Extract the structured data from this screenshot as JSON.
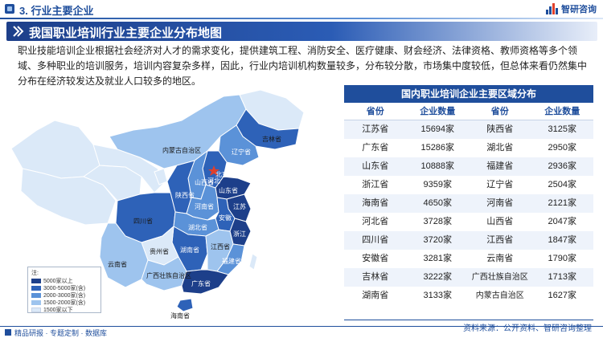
{
  "header": {
    "section_title": "3. 行业主要企业",
    "logo_text": "智研咨询",
    "logo_icon": "bar-logo-icon"
  },
  "banner": {
    "title": "我国职业培训行业主要企业分布地图",
    "icon": "double-chevron-icon"
  },
  "paragraph": "职业技能培训企业根据社会经济对人才的需求变化，提供建筑工程、消防安全、医疗健康、财会经济、法律资格、教师资格等多个领域、多种职业的培训服务，培训内容复杂多样，因此，行业内培训机构数量较多，分布较分散，市场集中度较低，但总体来看仍然集中分布在经济较发达及就业人口较多的地区。",
  "map": {
    "labels": {
      "neimenggu": "内蒙古自治区",
      "jilin": "吉林省",
      "liaoning": "辽宁省",
      "beijing": "北京市",
      "hebei": "河北",
      "shanxi": "山西省",
      "shandong": "山东省",
      "shaanxi": "陕西省",
      "henan": "河南省",
      "anhui": "安徽",
      "sichuan": "四川省",
      "hubei": "湖北省",
      "jiangsu": "江苏",
      "jiangxi": "江西省",
      "zhejiang": "浙江",
      "guizhou": "贵州省",
      "fujian": "福建省",
      "hunan": "湖南省",
      "yunnan": "云南省",
      "guangxi": "广西壮族自治区",
      "guangdong": "广东省",
      "hainan": "海南省"
    },
    "legend": {
      "title": "注:",
      "items": [
        {
          "label": "5000家以上",
          "color": "#1d3f8a"
        },
        {
          "label": "3000-5000家(含)",
          "color": "#2e62b8"
        },
        {
          "label": "2000-3000家(含)",
          "color": "#5b92d8"
        },
        {
          "label": "1500-2000家(含)",
          "color": "#9ec4ee"
        },
        {
          "label": "1500家以下",
          "color": "#dbe9f8"
        }
      ]
    },
    "capital_marker": "star-icon"
  },
  "table": {
    "title": "国内职业培训企业主要区域分布",
    "columns": [
      "省份",
      "企业数量",
      "省份",
      "企业数量"
    ],
    "rows": [
      [
        "江苏省",
        "15694家",
        "陕西省",
        "3125家"
      ],
      [
        "广东省",
        "15286家",
        "湖北省",
        "2950家"
      ],
      [
        "山东省",
        "10888家",
        "福建省",
        "2936家"
      ],
      [
        "浙江省",
        "9359家",
        "辽宁省",
        "2504家"
      ],
      [
        "海南省",
        "4650家",
        "河南省",
        "2121家"
      ],
      [
        "河北省",
        "3728家",
        "山西省",
        "2047家"
      ],
      [
        "四川省",
        "3720家",
        "江西省",
        "1847家"
      ],
      [
        "安徽省",
        "3281家",
        "云南省",
        "1790家"
      ],
      [
        "吉林省",
        "3222家",
        "广西壮族自治区",
        "1713家"
      ],
      [
        "湖南省",
        "3133家",
        "内蒙古自治区",
        "1627家"
      ]
    ]
  },
  "source": "资料来源：公开资料、智研咨询整理",
  "footer": "精品研报 · 专题定制 · 数据库"
}
